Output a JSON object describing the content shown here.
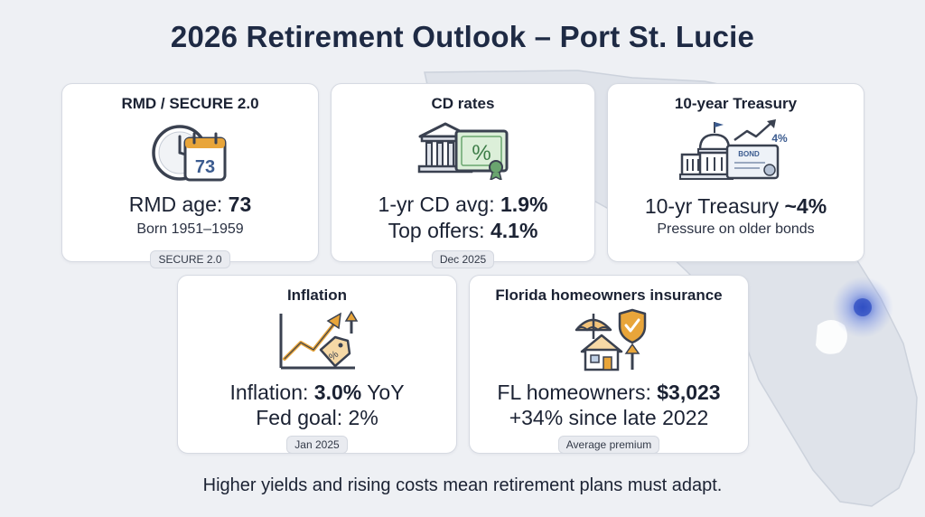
{
  "title": "2026 Retirement Outlook – Port St. Lucie",
  "cards": {
    "rmd": {
      "title": "RMD / SECURE 2.0",
      "calendar_number": "73",
      "line1_label": "RMD age: ",
      "line1_value": "73",
      "line2": "Born 1951–1959",
      "badge": "SECURE 2.0",
      "icon": "clock-calendar-icon"
    },
    "cd": {
      "title": "CD rates",
      "line1_label": "1-yr CD avg: ",
      "line1_value": "1.9%",
      "line2_label": "Top offers: ",
      "line2_value": "4.1%",
      "badge": "Dec 2025",
      "icon_symbol": "%",
      "icon": "bank-certificate-icon"
    },
    "treasury": {
      "title": "10-year Treasury",
      "line1_label": "10-yr Treasury ",
      "line1_value": "~4%",
      "line2": "Pressure on older bonds",
      "icon_bond": "BOND",
      "icon_rate": "4%",
      "icon": "capitol-bond-icon"
    },
    "inflation": {
      "title": "Inflation",
      "line1_label": "Inflation: ",
      "line1_value": "3.0%",
      "line1_suffix": " YoY",
      "line2": "Fed goal: 2%",
      "badge": "Jan 2025",
      "icon": "rising-price-tag-icon"
    },
    "insurance": {
      "title": "Florida homeowners insurance",
      "line1_label": "FL homeowners: ",
      "line1_value": "$3,023",
      "line2": "+34% since late 2022",
      "badge": "Average premium",
      "icon": "house-umbrella-shield-icon"
    }
  },
  "footer": "Higher yields and rising costs mean retirement plans must adapt.",
  "colors": {
    "accent_gold": "#e8a53a",
    "accent_blue": "#3b5b8f",
    "accent_green": "#4c9a58",
    "background": "#eef0f4"
  }
}
